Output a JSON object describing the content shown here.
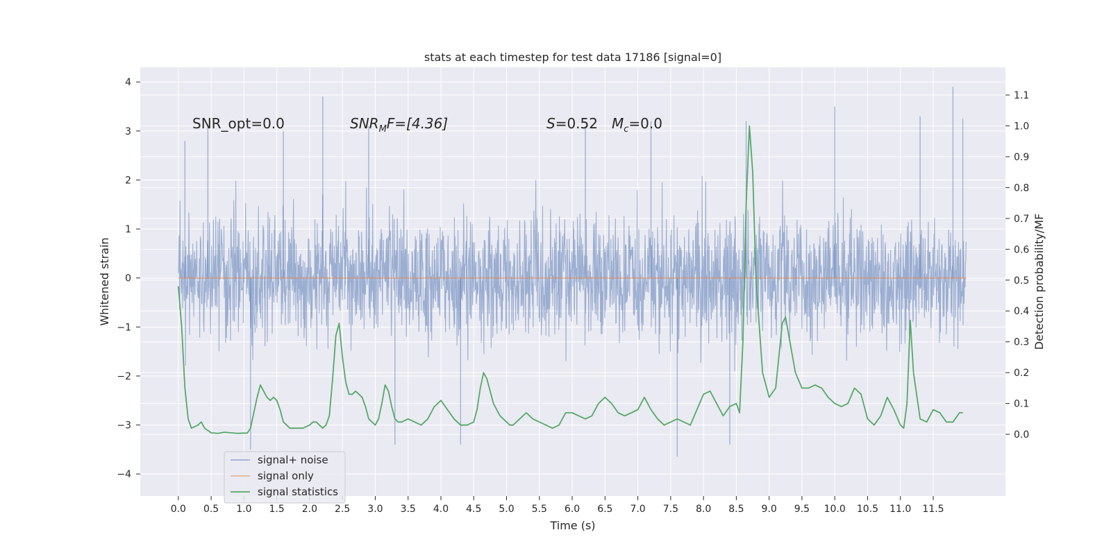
{
  "chart_data": {
    "type": "line",
    "title": "stats at each timestep for test data 17186 [signal=0]",
    "xlabel": "Time (s)",
    "ylabel_left": "Whitened strain",
    "ylabel_right": "Detection probability/MF",
    "xlim": [
      -0.58,
      12.6
    ],
    "ylim_left": [
      -4.45,
      4.3
    ],
    "ylim_right": [
      -0.2,
      1.19
    ],
    "x_ticks": [
      0.0,
      0.5,
      1.0,
      1.5,
      2.0,
      2.5,
      3.0,
      3.5,
      4.0,
      4.5,
      5.0,
      5.5,
      6.0,
      6.5,
      7.0,
      7.5,
      8.0,
      8.5,
      9.0,
      9.5,
      10.0,
      10.5,
      11.0,
      11.5
    ],
    "x_tick_labels": [
      "0.0",
      "0.5",
      "1.0",
      "1.5",
      "2.0",
      "2.5",
      "3.0",
      "3.5",
      "4.0",
      "4.5",
      "5.0",
      "5.5",
      "6.0",
      "6.5",
      "7.0",
      "7.5",
      "8.0",
      "8.5",
      "9.0",
      "9.5",
      "10.0",
      "10.5",
      "11.0",
      "11.5"
    ],
    "y_left_ticks": [
      -4,
      -3,
      -2,
      -1,
      0,
      1,
      2,
      3,
      4
    ],
    "y_left_tick_labels": [
      "−4",
      "−3",
      "−2",
      "−1",
      "0",
      "1",
      "2",
      "3",
      "4"
    ],
    "y_right_ticks": [
      0.0,
      0.1,
      0.2,
      0.3,
      0.4,
      0.5,
      0.6,
      0.7,
      0.8,
      0.9,
      1.0,
      1.1
    ],
    "y_right_tick_labels": [
      "0.0",
      "0.1",
      "0.2",
      "0.3",
      "0.4",
      "0.5",
      "0.6",
      "0.7",
      "0.8",
      "0.9",
      "1.0",
      "1.1"
    ],
    "grid": true,
    "legend_position": "lower-left",
    "annotations": {
      "snr_opt": "SNR_opt=0.0",
      "snr_mf_main": "SNR",
      "snr_mf_sub": "M",
      "snr_mf_rest": "F=[4.36]",
      "s_main": "S",
      "s_value": "=0.52",
      "mc_main": "M",
      "mc_sub": "c",
      "mc_value": "=0.0"
    },
    "series": [
      {
        "name": "signal+ noise",
        "axis": "left",
        "color": "#4c72b0",
        "style": "dense-noise",
        "x_range": [
          0.0,
          12.0
        ],
        "approx_amplitude": 1.5,
        "notable_spikes": [
          {
            "x": 0.1,
            "y": 2.8
          },
          {
            "x": 0.45,
            "y": 3.1
          },
          {
            "x": 1.1,
            "y": -3.5
          },
          {
            "x": 1.6,
            "y": 3.0
          },
          {
            "x": 2.2,
            "y": 3.7
          },
          {
            "x": 2.9,
            "y": 3.1
          },
          {
            "x": 3.3,
            "y": -3.4
          },
          {
            "x": 4.3,
            "y": -3.4
          },
          {
            "x": 6.2,
            "y": 3.1
          },
          {
            "x": 7.2,
            "y": 3.2
          },
          {
            "x": 7.6,
            "y": -3.65
          },
          {
            "x": 8.4,
            "y": -3.4
          },
          {
            "x": 8.65,
            "y": 3.2
          },
          {
            "x": 10.0,
            "y": 3.5
          },
          {
            "x": 11.3,
            "y": 3.3
          },
          {
            "x": 11.8,
            "y": 3.9
          },
          {
            "x": 11.95,
            "y": 3.25
          }
        ]
      },
      {
        "name": "signal only",
        "axis": "left",
        "color": "#dd8452",
        "x": [
          0.0,
          12.0
        ],
        "y": [
          0.0,
          0.0
        ]
      },
      {
        "name": "signal statistics",
        "axis": "right",
        "color": "#55a868",
        "x": [
          0.0,
          0.05,
          0.1,
          0.15,
          0.2,
          0.3,
          0.35,
          0.4,
          0.5,
          0.6,
          0.7,
          0.8,
          0.9,
          1.0,
          1.05,
          1.1,
          1.15,
          1.2,
          1.25,
          1.3,
          1.35,
          1.4,
          1.45,
          1.5,
          1.55,
          1.6,
          1.7,
          1.8,
          1.9,
          2.0,
          2.05,
          2.1,
          2.15,
          2.2,
          2.25,
          2.3,
          2.35,
          2.4,
          2.45,
          2.5,
          2.55,
          2.6,
          2.65,
          2.7,
          2.8,
          2.85,
          2.9,
          3.0,
          3.05,
          3.1,
          3.15,
          3.2,
          3.25,
          3.3,
          3.35,
          3.4,
          3.5,
          3.6,
          3.7,
          3.8,
          3.9,
          4.0,
          4.1,
          4.2,
          4.3,
          4.4,
          4.5,
          4.55,
          4.6,
          4.65,
          4.7,
          4.8,
          4.9,
          5.0,
          5.05,
          5.1,
          5.15,
          5.2,
          5.3,
          5.4,
          5.5,
          5.6,
          5.7,
          5.8,
          5.9,
          6.0,
          6.1,
          6.2,
          6.3,
          6.4,
          6.5,
          6.6,
          6.7,
          6.8,
          6.9,
          7.0,
          7.1,
          7.2,
          7.3,
          7.4,
          7.5,
          7.6,
          7.7,
          7.8,
          7.9,
          8.0,
          8.1,
          8.2,
          8.3,
          8.4,
          8.5,
          8.55,
          8.6,
          8.65,
          8.7,
          8.75,
          8.8,
          8.9,
          9.0,
          9.1,
          9.2,
          9.25,
          9.3,
          9.4,
          9.5,
          9.6,
          9.7,
          9.8,
          9.9,
          10.0,
          10.1,
          10.2,
          10.3,
          10.4,
          10.5,
          10.6,
          10.7,
          10.8,
          10.9,
          11.0,
          11.05,
          11.1,
          11.15,
          11.2,
          11.3,
          11.4,
          11.5,
          11.6,
          11.7,
          11.8,
          11.9,
          11.95
        ],
        "y": [
          0.48,
          0.35,
          0.15,
          0.05,
          0.02,
          0.03,
          0.04,
          0.02,
          0.005,
          0.003,
          0.007,
          0.005,
          0.003,
          0.004,
          0.004,
          0.02,
          0.07,
          0.12,
          0.16,
          0.14,
          0.12,
          0.11,
          0.12,
          0.11,
          0.08,
          0.04,
          0.02,
          0.02,
          0.02,
          0.03,
          0.04,
          0.04,
          0.03,
          0.02,
          0.03,
          0.06,
          0.18,
          0.32,
          0.36,
          0.25,
          0.17,
          0.13,
          0.13,
          0.14,
          0.12,
          0.09,
          0.05,
          0.03,
          0.05,
          0.1,
          0.16,
          0.14,
          0.09,
          0.05,
          0.04,
          0.04,
          0.05,
          0.04,
          0.03,
          0.05,
          0.09,
          0.11,
          0.08,
          0.05,
          0.03,
          0.03,
          0.04,
          0.08,
          0.15,
          0.2,
          0.18,
          0.1,
          0.06,
          0.04,
          0.03,
          0.03,
          0.04,
          0.05,
          0.07,
          0.05,
          0.04,
          0.03,
          0.02,
          0.03,
          0.07,
          0.07,
          0.06,
          0.05,
          0.06,
          0.1,
          0.12,
          0.1,
          0.07,
          0.06,
          0.07,
          0.08,
          0.12,
          0.08,
          0.05,
          0.03,
          0.04,
          0.05,
          0.04,
          0.03,
          0.08,
          0.13,
          0.14,
          0.1,
          0.06,
          0.09,
          0.1,
          0.07,
          0.3,
          0.75,
          1.0,
          0.85,
          0.5,
          0.2,
          0.12,
          0.15,
          0.36,
          0.38,
          0.32,
          0.2,
          0.15,
          0.15,
          0.16,
          0.15,
          0.12,
          0.1,
          0.09,
          0.1,
          0.15,
          0.13,
          0.05,
          0.03,
          0.06,
          0.12,
          0.08,
          0.03,
          0.02,
          0.1,
          0.37,
          0.2,
          0.05,
          0.04,
          0.08,
          0.07,
          0.04,
          0.04,
          0.07,
          0.07
        ]
      }
    ]
  }
}
